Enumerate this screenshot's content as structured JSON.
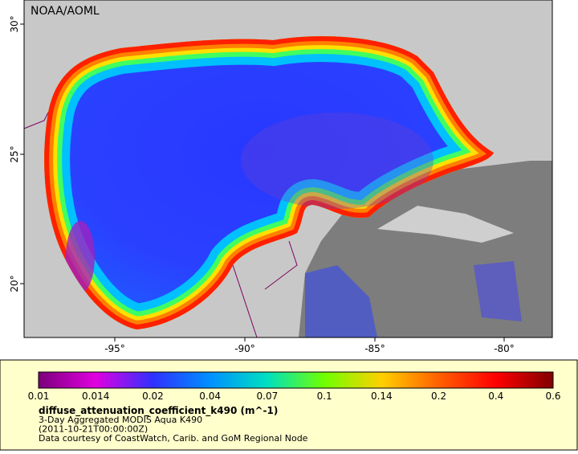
{
  "map": {
    "credit": "NOAA/AOML",
    "lon_ticks": [
      "-95°",
      "-90°",
      "-85°",
      "-80°"
    ],
    "lat_ticks": [
      "20°",
      "25°",
      "30°"
    ],
    "colorbar": {
      "ticks": [
        "0.01",
        "0.014",
        "0.02",
        "0.04",
        "0.07",
        "0.1",
        "0.14",
        "0.2",
        "0.4",
        "0.6"
      ],
      "colors": [
        "#7a007a",
        "#e000e0",
        "#3030ff",
        "#0090ff",
        "#00e0c0",
        "#70ff00",
        "#ffd000",
        "#ff6000",
        "#ff0000",
        "#800000"
      ]
    },
    "legend": {
      "variable": "diffuse_attenuation_coefficient_k490 (m^-1)",
      "lines": [
        "3-Day Aggregated MODIS Aqua K490",
        "(2011-10-21T00:00:00Z)",
        "Data courtesy of CoastWatch, Carib. and GoM Regional Node"
      ]
    }
  }
}
